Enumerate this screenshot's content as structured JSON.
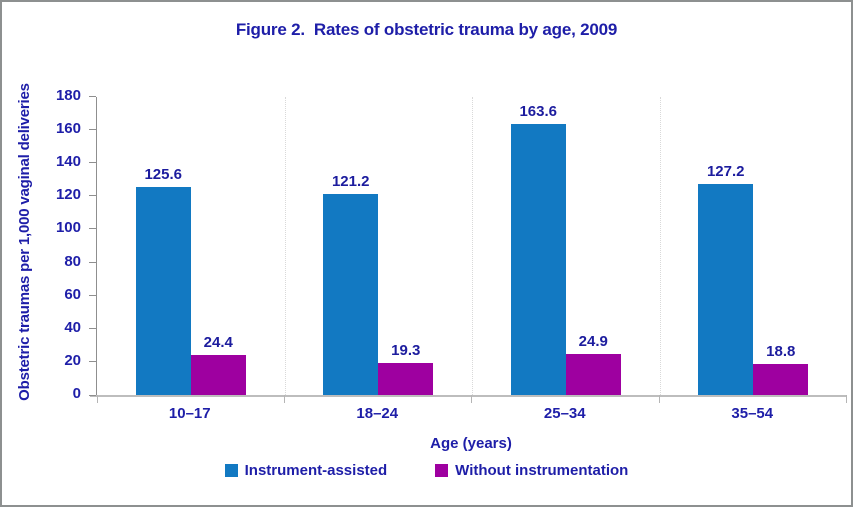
{
  "chart_data": {
    "type": "bar",
    "title": "Figure 2.  Rates of obstetric trauma by age, 2009",
    "categories": [
      "10–17",
      "18–24",
      "25–34",
      "35–54"
    ],
    "series": [
      {
        "name": "Instrument-assisted",
        "color": "#1279c2",
        "values": [
          125.6,
          121.2,
          163.6,
          127.2
        ]
      },
      {
        "name": "Without instrumentation",
        "color": "#9e00a0",
        "values": [
          24.4,
          19.3,
          24.9,
          18.8
        ]
      }
    ],
    "xlabel": "Age (years)",
    "ylabel": "Obstetric traumas per 1,000 vaginal deliveries",
    "ylim": [
      0,
      180
    ],
    "ytick_step": 20,
    "grid": "dotted vertical category separators",
    "legend_position": "bottom",
    "data_labels": true,
    "colors": {
      "text_navy": "#1e1ea8",
      "axis_gray": "#bdbdbd",
      "background": "#ffffff",
      "frame_border": "#8d9090"
    }
  }
}
